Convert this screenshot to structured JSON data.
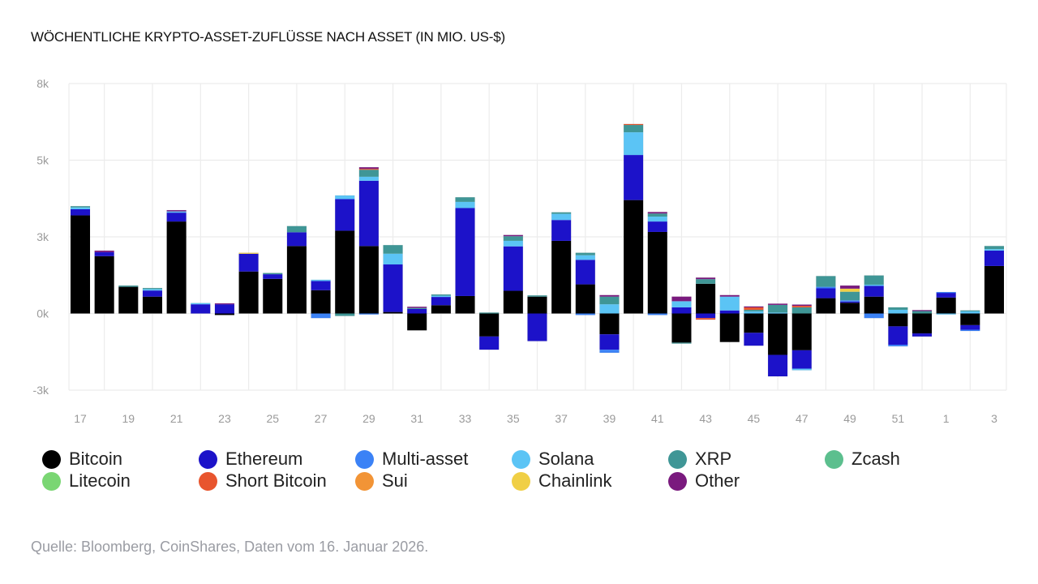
{
  "chart_data": {
    "type": "bar",
    "stacked": true,
    "title": "WÖCHENTLICHE KRYPTO-ASSET-ZUFLÜSSE NACH ASSET (IN MIO. US-$)",
    "xlabel": "",
    "ylabel": "",
    "ylim": [
      -2500,
      7500
    ],
    "yticks": [
      7500,
      5000,
      2500,
      0,
      -2500
    ],
    "ytick_labels": [
      "8k",
      "5k",
      "3k",
      "0k",
      "-3k"
    ],
    "grid": true,
    "legend_position": "bottom",
    "categories": [
      "17",
      "18",
      "19",
      "20",
      "21",
      "22",
      "23",
      "24",
      "25",
      "26",
      "27",
      "28",
      "29",
      "30",
      "31",
      "32",
      "33",
      "34",
      "35",
      "36",
      "37",
      "38",
      "39",
      "40",
      "41",
      "42",
      "43",
      "44",
      "45",
      "46",
      "47",
      "48",
      "49",
      "50",
      "51",
      "52",
      "1",
      "2",
      "3"
    ],
    "xtick_labels": [
      "17",
      "19",
      "21",
      "23",
      "25",
      "27",
      "29",
      "31",
      "33",
      "35",
      "37",
      "39",
      "41",
      "43",
      "45",
      "47",
      "49",
      "51",
      "1",
      "3"
    ],
    "series": [
      {
        "name": "Bitcoin",
        "color": "#000000",
        "values": [
          3200,
          1870,
          870,
          550,
          3000,
          0,
          -50,
          1370,
          1130,
          2200,
          760,
          2700,
          2200,
          50,
          -550,
          270,
          570,
          -750,
          740,
          550,
          2370,
          950,
          -680,
          3700,
          2660,
          -950,
          970,
          -930,
          -630,
          -1350,
          -1200,
          500,
          350,
          550,
          -420,
          -650,
          520,
          -380,
          1550
        ]
      },
      {
        "name": "Ethereum",
        "color": "#1c12c9",
        "values": [
          200,
          130,
          0,
          200,
          290,
          300,
          300,
          580,
          150,
          450,
          300,
          1030,
          2130,
          1550,
          150,
          270,
          2870,
          -430,
          1450,
          -900,
          680,
          800,
          -500,
          1470,
          340,
          200,
          -150,
          100,
          -420,
          -700,
          -600,
          320,
          40,
          350,
          -600,
          -100,
          160,
          -150,
          500
        ]
      },
      {
        "name": "Multi-asset",
        "color": "#3b82f6",
        "values": [
          0,
          0,
          0,
          0,
          0,
          0,
          0,
          0,
          0,
          0,
          -150,
          0,
          -30,
          0,
          0,
          0,
          0,
          0,
          0,
          0,
          0,
          -50,
          -100,
          0,
          -50,
          0,
          0,
          0,
          0,
          0,
          0,
          50,
          40,
          -150,
          -50,
          0,
          20,
          -40,
          0
        ]
      },
      {
        "name": "Solana",
        "color": "#5bc4f5",
        "values": [
          60,
          0,
          0,
          50,
          40,
          40,
          0,
          0,
          0,
          0,
          40,
          120,
          130,
          350,
          0,
          40,
          200,
          0,
          180,
          0,
          200,
          150,
          300,
          740,
          160,
          200,
          0,
          450,
          70,
          30,
          -50,
          0,
          0,
          40,
          120,
          0,
          -30,
          70,
          50
        ]
      },
      {
        "name": "XRP",
        "color": "#3f9696",
        "values": [
          40,
          0,
          40,
          30,
          0,
          0,
          0,
          0,
          40,
          200,
          0,
          -80,
          230,
          280,
          30,
          40,
          150,
          30,
          150,
          40,
          50,
          80,
          250,
          240,
          100,
          -30,
          150,
          0,
          50,
          250,
          200,
          350,
          280,
          300,
          80,
          80,
          0,
          30,
          100
        ]
      },
      {
        "name": "Zcash",
        "color": "#5cbf8e",
        "values": [
          0,
          0,
          0,
          0,
          0,
          0,
          0,
          0,
          0,
          0,
          0,
          0,
          0,
          0,
          0,
          0,
          0,
          0,
          0,
          0,
          0,
          0,
          0,
          0,
          0,
          0,
          0,
          0,
          0,
          0,
          0,
          0,
          0,
          0,
          0,
          0,
          0,
          0,
          0
        ]
      },
      {
        "name": "Litecoin",
        "color": "#7ad673",
        "values": [
          0,
          0,
          0,
          0,
          0,
          0,
          0,
          0,
          0,
          0,
          0,
          0,
          0,
          0,
          0,
          0,
          0,
          0,
          0,
          0,
          0,
          0,
          0,
          0,
          0,
          0,
          0,
          0,
          0,
          0,
          0,
          0,
          0,
          0,
          0,
          0,
          0,
          0,
          0
        ]
      },
      {
        "name": "Short Bitcoin",
        "color": "#e8552e",
        "values": [
          0,
          0,
          0,
          0,
          0,
          0,
          0,
          0,
          0,
          0,
          0,
          0,
          30,
          0,
          0,
          0,
          0,
          0,
          0,
          0,
          0,
          0,
          0,
          30,
          0,
          0,
          -50,
          0,
          80,
          0,
          50,
          0,
          0,
          0,
          0,
          0,
          0,
          0,
          0
        ]
      },
      {
        "name": "Sui",
        "color": "#f29436",
        "values": [
          0,
          0,
          0,
          0,
          0,
          0,
          0,
          0,
          0,
          0,
          0,
          0,
          0,
          0,
          0,
          0,
          0,
          0,
          0,
          0,
          0,
          0,
          0,
          0,
          0,
          0,
          0,
          0,
          0,
          0,
          0,
          0,
          0,
          0,
          0,
          0,
          0,
          0,
          0
        ]
      },
      {
        "name": "Chainlink",
        "color": "#f0cf45",
        "values": [
          0,
          0,
          0,
          0,
          0,
          0,
          0,
          30,
          0,
          0,
          0,
          0,
          0,
          0,
          0,
          0,
          0,
          0,
          0,
          0,
          0,
          0,
          0,
          0,
          0,
          0,
          0,
          0,
          0,
          0,
          0,
          0,
          100,
          0,
          0,
          0,
          0,
          0,
          0
        ]
      },
      {
        "name": "Other",
        "color": "#7a1a7e",
        "values": [
          0,
          50,
          0,
          0,
          40,
          0,
          30,
          0,
          0,
          0,
          0,
          0,
          50,
          0,
          40,
          0,
          0,
          0,
          40,
          0,
          0,
          0,
          50,
          0,
          50,
          150,
          50,
          50,
          30,
          40,
          40,
          0,
          100,
          0,
          0,
          30,
          0,
          0,
          0
        ]
      }
    ]
  },
  "legend": {
    "items": [
      {
        "label": "Bitcoin",
        "color": "#000000"
      },
      {
        "label": "Ethereum",
        "color": "#1c12c9"
      },
      {
        "label": "Multi-asset",
        "color": "#3b82f6"
      },
      {
        "label": "Solana",
        "color": "#5bc4f5"
      },
      {
        "label": "XRP",
        "color": "#3f9696"
      },
      {
        "label": "Zcash",
        "color": "#5cbf8e"
      },
      {
        "label": "Litecoin",
        "color": "#7ad673"
      },
      {
        "label": "Short Bitcoin",
        "color": "#e8552e"
      },
      {
        "label": "Sui",
        "color": "#f29436"
      },
      {
        "label": "Chainlink",
        "color": "#f0cf45"
      },
      {
        "label": "Other",
        "color": "#7a1a7e"
      }
    ]
  },
  "source": "Quelle: Bloomberg, CoinShares, Daten vom 16. Januar 2026."
}
